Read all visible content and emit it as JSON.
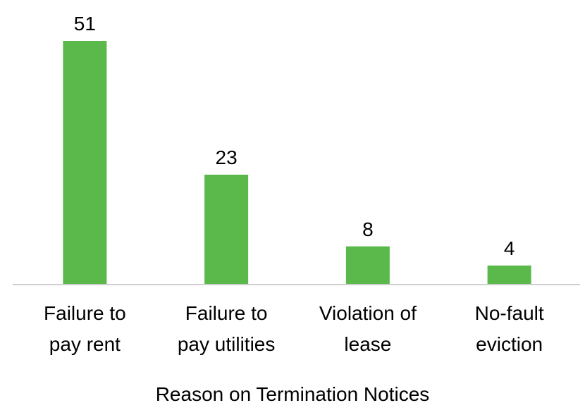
{
  "chart_data": {
    "type": "bar",
    "categories": [
      "Failure to\npay rent",
      "Failure to\npay utilities",
      "Violation of\nlease",
      "No-fault\neviction"
    ],
    "values": [
      51,
      23,
      8,
      4
    ],
    "color": "#5ab94a",
    "x_label": "Reason on Termination Notices"
  }
}
